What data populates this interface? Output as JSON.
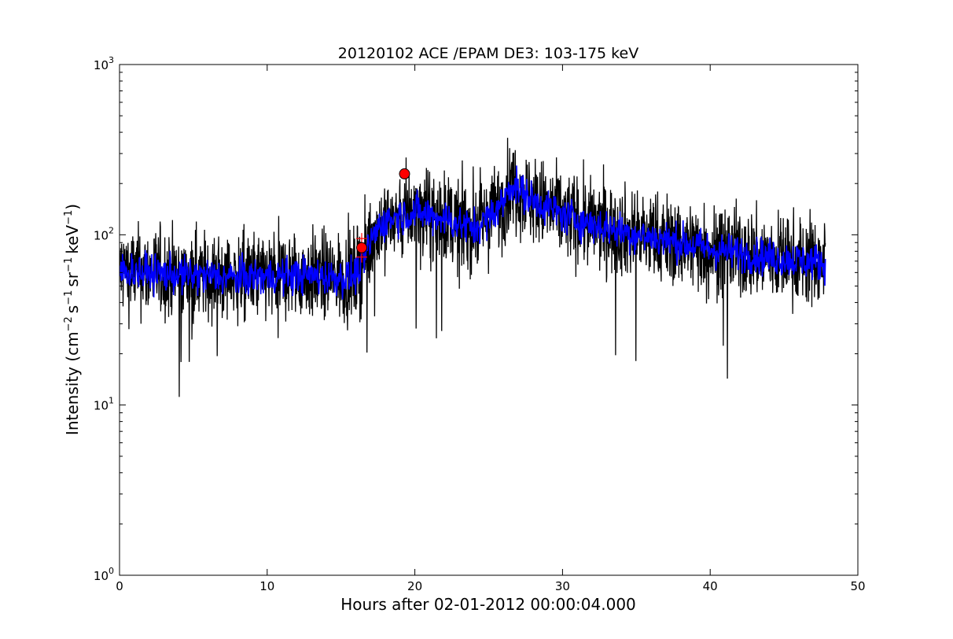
{
  "chart_data": {
    "type": "line",
    "title": "20120102 ACE /EPAM DE3: 103-175 keV",
    "xlabel": "Hours after 02-01-2012 00:00:04.000",
    "ylabel_base": "Intensity (cm",
    "ylabel_parts": [
      "Intensity (cm",
      "−2",
      "s",
      "−1",
      "sr",
      "−1",
      "keV",
      "−1",
      ")"
    ],
    "xlim": [
      0,
      50
    ],
    "ylim": [
      1,
      1000
    ],
    "yscale": "log",
    "x_ticks": [
      0,
      10,
      20,
      30,
      40,
      50
    ],
    "x_tick_labels": [
      "0",
      "10",
      "20",
      "30",
      "40",
      "50"
    ],
    "y_ticks": [
      1,
      10,
      100,
      1000
    ],
    "y_tick_labels": [
      {
        "base": "10",
        "exp": "0"
      },
      {
        "base": "10",
        "exp": "1"
      },
      {
        "base": "10",
        "exp": "2"
      },
      {
        "base": "10",
        "exp": "3"
      }
    ],
    "grid": false,
    "series": [
      {
        "color": "#000000",
        "style": "raw",
        "x": [
          0,
          2,
          4,
          6,
          8,
          10,
          12,
          14,
          15.5,
          16,
          16.5,
          17,
          17.5,
          18,
          19,
          20,
          21,
          22,
          23,
          24,
          25,
          26,
          26.5,
          27,
          28,
          30,
          32,
          35,
          38,
          40,
          42,
          44,
          46,
          47.8
        ],
        "y": [
          62,
          60,
          58,
          57,
          56,
          57,
          58,
          57,
          56,
          58,
          70,
          90,
          110,
          120,
          130,
          135,
          130,
          125,
          115,
          110,
          125,
          155,
          200,
          185,
          160,
          130,
          115,
          100,
          90,
          82,
          78,
          74,
          71,
          68
        ]
      },
      {
        "color": "#0000ff",
        "style": "smoothed",
        "x": [
          0,
          2,
          4,
          6,
          8,
          10,
          12,
          14,
          15.5,
          16,
          16.5,
          17,
          17.5,
          18,
          19,
          20,
          21,
          22,
          23,
          24,
          25,
          26,
          26.5,
          27,
          28,
          30,
          32,
          35,
          38,
          40,
          42,
          44,
          46,
          47.8
        ],
        "y": [
          62,
          60,
          58,
          57,
          56,
          57,
          58,
          57,
          56,
          58,
          70,
          90,
          110,
          120,
          130,
          135,
          130,
          125,
          115,
          110,
          125,
          155,
          200,
          185,
          160,
          130,
          115,
          100,
          90,
          82,
          78,
          74,
          71,
          68
        ]
      }
    ],
    "markers": [
      {
        "x": 16.4,
        "y": 84,
        "shape": "circle",
        "color": "#ff0000"
      },
      {
        "x": 19.3,
        "y": 228,
        "shape": "circle",
        "color": "#ff0000"
      }
    ],
    "plus_markers": [
      {
        "x": 16.4,
        "y": 74,
        "color": "#ff0000"
      },
      {
        "x": 16.4,
        "y": 95,
        "color": "#ff0000"
      }
    ]
  }
}
